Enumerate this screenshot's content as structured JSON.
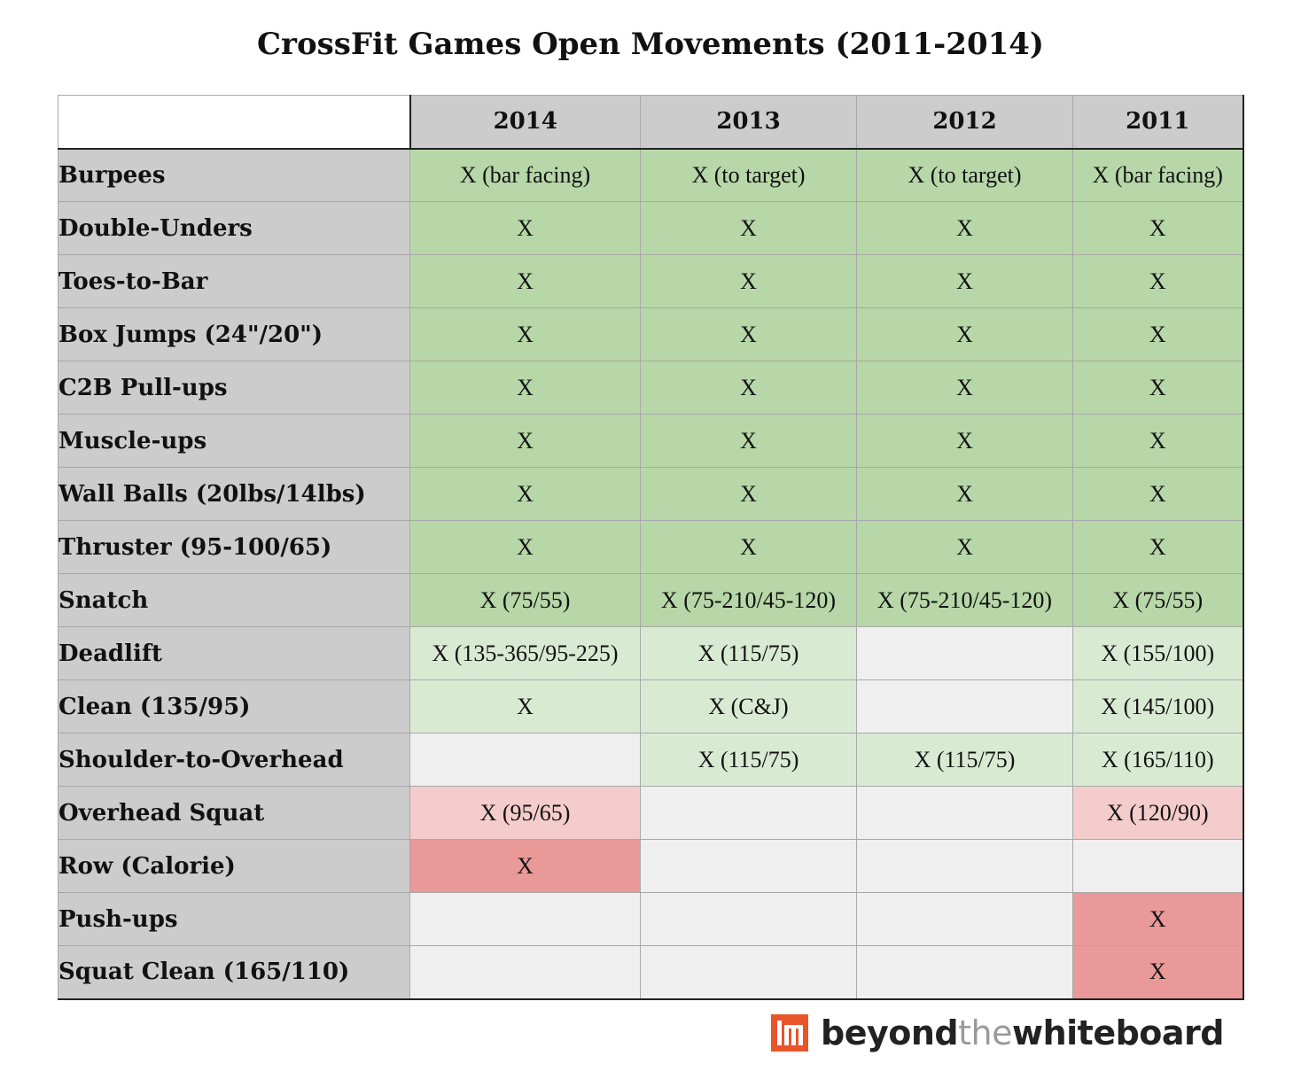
{
  "chart_data": {
    "type": "table",
    "title": "CrossFit Games Open Movements (2011-2014)",
    "columns": [
      "2014",
      "2013",
      "2012",
      "2011"
    ],
    "rows": [
      {
        "label": "Burpees",
        "cells": [
          {
            "text": "X (bar facing)",
            "tone": "dg"
          },
          {
            "text": "X (to target)",
            "tone": "dg"
          },
          {
            "text": "X (to target)",
            "tone": "dg"
          },
          {
            "text": "X (bar facing)",
            "tone": "dg"
          }
        ]
      },
      {
        "label": "Double-Unders",
        "cells": [
          {
            "text": "X",
            "tone": "dg"
          },
          {
            "text": "X",
            "tone": "dg"
          },
          {
            "text": "X",
            "tone": "dg"
          },
          {
            "text": "X",
            "tone": "dg"
          }
        ]
      },
      {
        "label": "Toes-to-Bar",
        "cells": [
          {
            "text": "X",
            "tone": "dg"
          },
          {
            "text": "X",
            "tone": "dg"
          },
          {
            "text": "X",
            "tone": "dg"
          },
          {
            "text": "X",
            "tone": "dg"
          }
        ]
      },
      {
        "label": "Box Jumps (24\"/20\")",
        "cells": [
          {
            "text": "X",
            "tone": "dg"
          },
          {
            "text": "X",
            "tone": "dg"
          },
          {
            "text": "X",
            "tone": "dg"
          },
          {
            "text": "X",
            "tone": "dg"
          }
        ]
      },
      {
        "label": "C2B Pull-ups",
        "cells": [
          {
            "text": "X",
            "tone": "dg"
          },
          {
            "text": "X",
            "tone": "dg"
          },
          {
            "text": "X",
            "tone": "dg"
          },
          {
            "text": "X",
            "tone": "dg"
          }
        ]
      },
      {
        "label": "Muscle-ups",
        "cells": [
          {
            "text": "X",
            "tone": "dg"
          },
          {
            "text": "X",
            "tone": "dg"
          },
          {
            "text": "X",
            "tone": "dg"
          },
          {
            "text": "X",
            "tone": "dg"
          }
        ]
      },
      {
        "label": "Wall Balls (20lbs/14lbs)",
        "cells": [
          {
            "text": "X",
            "tone": "dg"
          },
          {
            "text": "X",
            "tone": "dg"
          },
          {
            "text": "X",
            "tone": "dg"
          },
          {
            "text": "X",
            "tone": "dg"
          }
        ]
      },
      {
        "label": "Thruster (95-100/65)",
        "cells": [
          {
            "text": "X",
            "tone": "dg"
          },
          {
            "text": "X",
            "tone": "dg"
          },
          {
            "text": "X",
            "tone": "dg"
          },
          {
            "text": "X",
            "tone": "dg"
          }
        ]
      },
      {
        "label": "Snatch",
        "cells": [
          {
            "text": "X (75/55)",
            "tone": "dg"
          },
          {
            "text": "X (75-210/45-120)",
            "tone": "dg"
          },
          {
            "text": "X (75-210/45-120)",
            "tone": "dg"
          },
          {
            "text": "X (75/55)",
            "tone": "dg"
          }
        ]
      },
      {
        "label": "Deadlift",
        "cells": [
          {
            "text": "X (135-365/95-225)",
            "tone": "lg"
          },
          {
            "text": "X (115/75)",
            "tone": "lg"
          },
          {
            "text": "",
            "tone": "gy"
          },
          {
            "text": "X (155/100)",
            "tone": "lg"
          }
        ]
      },
      {
        "label": "Clean (135/95)",
        "cells": [
          {
            "text": "X",
            "tone": "lg"
          },
          {
            "text": "X (C&J)",
            "tone": "lg"
          },
          {
            "text": "",
            "tone": "gy"
          },
          {
            "text": "X (145/100)",
            "tone": "lg"
          }
        ]
      },
      {
        "label": "Shoulder-to-Overhead",
        "cells": [
          {
            "text": "",
            "tone": "gy"
          },
          {
            "text": "X (115/75)",
            "tone": "lg"
          },
          {
            "text": "X (115/75)",
            "tone": "lg"
          },
          {
            "text": "X (165/110)",
            "tone": "lg"
          }
        ]
      },
      {
        "label": "Overhead Squat",
        "cells": [
          {
            "text": "X (95/65)",
            "tone": "lp"
          },
          {
            "text": "",
            "tone": "gy"
          },
          {
            "text": "",
            "tone": "gy"
          },
          {
            "text": "X (120/90)",
            "tone": "lp"
          }
        ]
      },
      {
        "label": "Row (Calorie)",
        "cells": [
          {
            "text": "X",
            "tone": "dp"
          },
          {
            "text": "",
            "tone": "gy"
          },
          {
            "text": "",
            "tone": "gy"
          },
          {
            "text": "",
            "tone": "gy"
          }
        ]
      },
      {
        "label": "Push-ups",
        "cells": [
          {
            "text": "",
            "tone": "gy"
          },
          {
            "text": "",
            "tone": "gy"
          },
          {
            "text": "",
            "tone": "gy"
          },
          {
            "text": "X",
            "tone": "dp"
          }
        ]
      },
      {
        "label": "Squat Clean (165/110)",
        "cells": [
          {
            "text": "",
            "tone": "gy"
          },
          {
            "text": "",
            "tone": "gy"
          },
          {
            "text": "",
            "tone": "gy"
          },
          {
            "text": "X",
            "tone": "dp"
          }
        ]
      }
    ]
  },
  "colors": {
    "dg": "#b7d7a8",
    "lg": "#d9ead3",
    "gy": "#efefef",
    "lp": "#f4cccc",
    "dp": "#ea9999",
    "header": "#cccccc",
    "brand_orange": "#e8552b"
  },
  "brand": {
    "part1": "beyond",
    "part2": "the",
    "part3": "whiteboard",
    "icon": "btwb-logo-icon"
  }
}
